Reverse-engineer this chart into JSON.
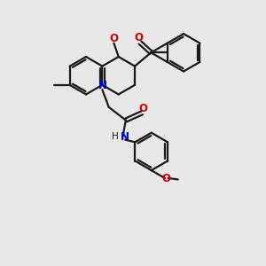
{
  "bg_color": "#e8e8e8",
  "bond_color": "#1a1a1a",
  "nitrogen_color": "#0000cc",
  "oxygen_color": "#cc0000",
  "text_color": "#1a1a1a",
  "figsize": [
    3.0,
    3.0
  ],
  "dpi": 100,
  "bond_lw": 1.6,
  "ring_r": 0.72,
  "xlim": [
    0,
    10
  ],
  "ylim": [
    0,
    10
  ]
}
